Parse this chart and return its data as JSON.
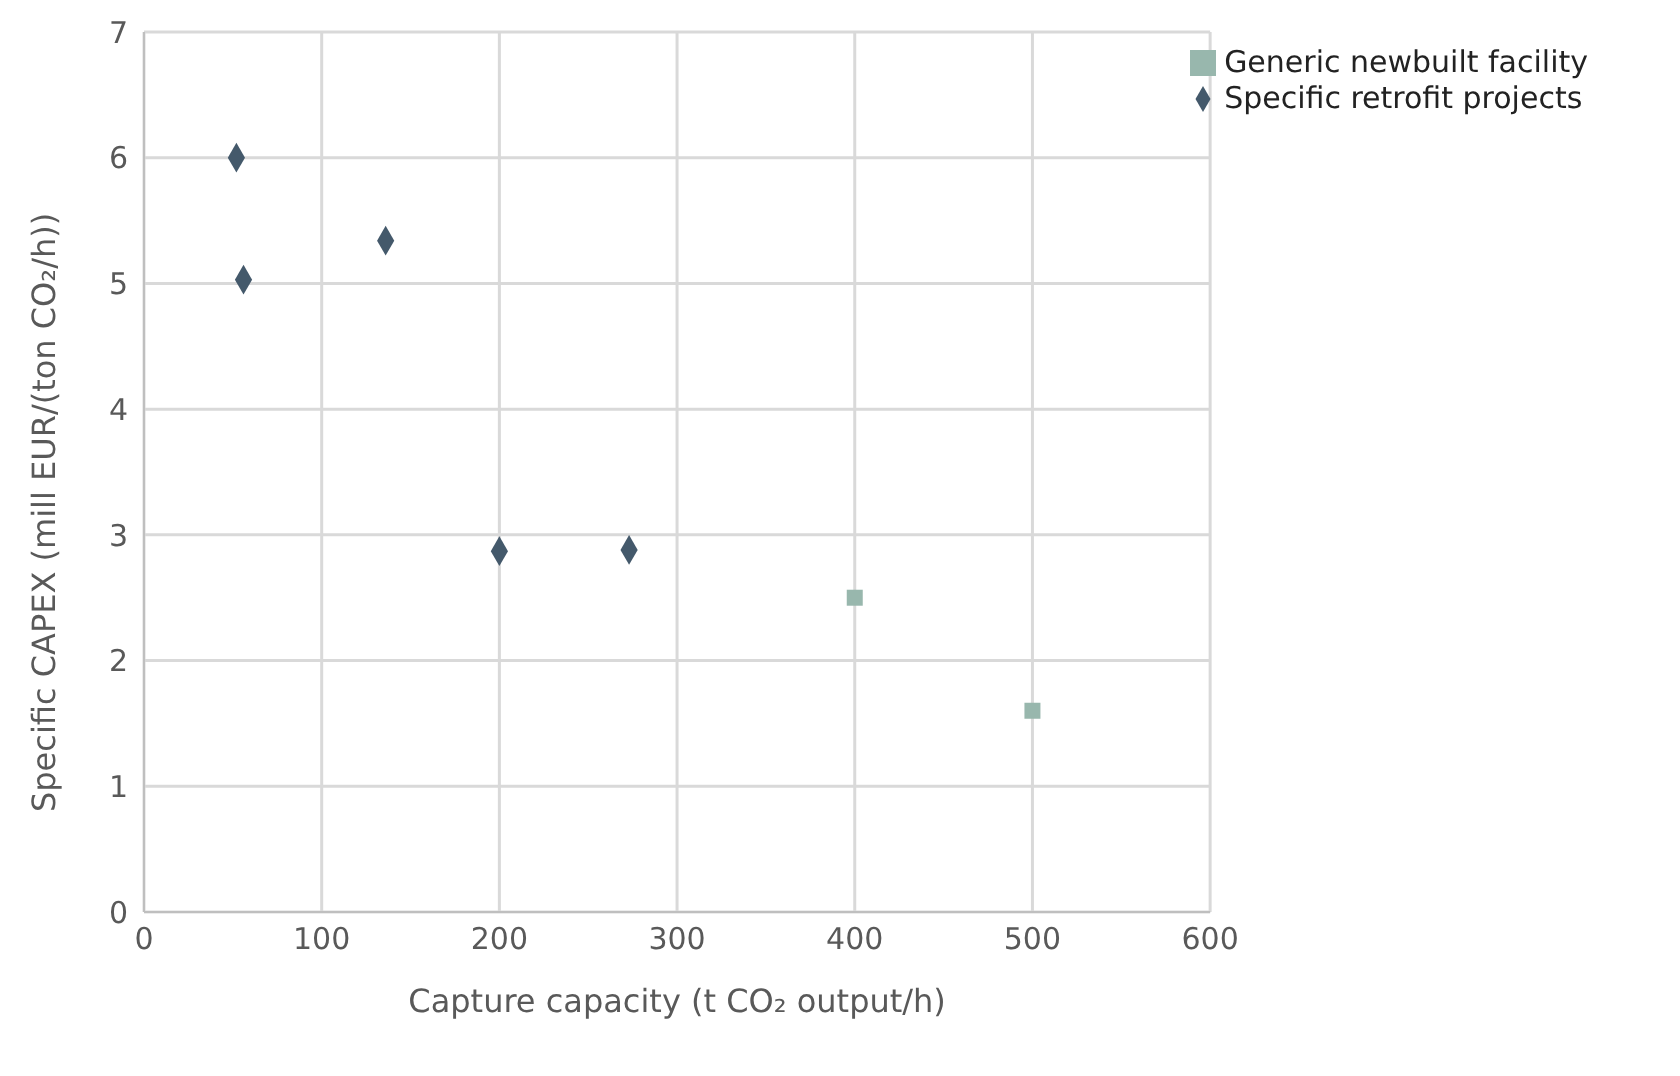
{
  "chart_data": {
    "type": "scatter",
    "xlabel": "Capture capacity (t CO₂ output/h)",
    "ylabel": "Specific CAPEX (mill EUR/(ton CO₂/h))",
    "xlim": [
      0,
      600
    ],
    "xticks": [
      0,
      100,
      200,
      300,
      400,
      500,
      600
    ],
    "ylim": [
      0,
      7
    ],
    "yticks": [
      0,
      1,
      2,
      3,
      4,
      5,
      6,
      7
    ],
    "grid": true,
    "legend": "top right",
    "series": [
      {
        "name": "Specific retrofit projects",
        "color": "#44596b",
        "marker": "diamond",
        "x": [
          52,
          56,
          136,
          200,
          273
        ],
        "values": [
          6.0,
          5.03,
          5.34,
          2.87,
          2.88
        ]
      },
      {
        "name": "Generic newbuilt facility",
        "color": "#98b7ad",
        "marker": "square",
        "x": [
          400,
          500
        ],
        "values": [
          2.5,
          1.6
        ]
      }
    ]
  }
}
